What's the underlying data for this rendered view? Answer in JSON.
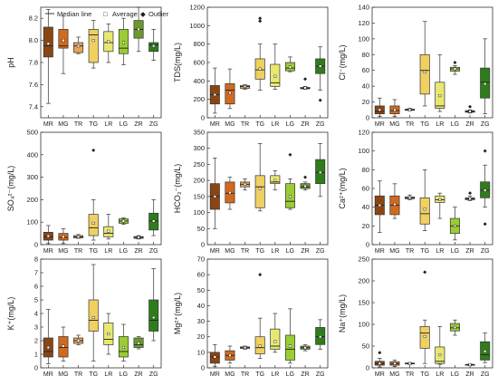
{
  "legend": {
    "median_label": "Median line",
    "average_label": "Average",
    "outlier_label": "Outlier",
    "average_marker": "□",
    "outlier_marker": "◆"
  },
  "colors": {
    "MR": "#8b4513",
    "MG": "#d2691e",
    "TR": "#e8a45a",
    "TG": "#f0d060",
    "LR": "#e8e870",
    "LG": "#9acd32",
    "ZR": "#6b9a2b",
    "ZG": "#2e7d1a"
  },
  "chart_data": [
    {
      "type": "box",
      "ylabel": "pH",
      "ylim": [
        7.3,
        8.3
      ],
      "yticks": [
        "7.4",
        "7.6",
        "7.8",
        "8.0",
        "8.2"
      ],
      "categories": [
        "MR",
        "MG",
        "TR",
        "TG",
        "LR",
        "LG",
        "ZR",
        "ZG"
      ],
      "boxes": [
        {
          "min": 7.43,
          "q1": 7.85,
          "median": 7.95,
          "q3": 8.12,
          "max": 8.28,
          "mean": 7.97,
          "outliers": []
        },
        {
          "min": 7.7,
          "q1": 7.93,
          "median": 7.95,
          "q3": 8.1,
          "max": 8.22,
          "mean": 8.0,
          "outliers": []
        },
        {
          "min": 7.88,
          "q1": 7.89,
          "median": 7.95,
          "q3": 7.98,
          "max": 8.03,
          "mean": 7.95,
          "outliers": []
        },
        {
          "min": 7.75,
          "q1": 7.8,
          "median": 8.05,
          "q3": 8.1,
          "max": 8.18,
          "mean": 8.0,
          "outliers": []
        },
        {
          "min": 7.8,
          "q1": 7.9,
          "median": 7.98,
          "q3": 8.08,
          "max": 8.15,
          "mean": 7.99,
          "outliers": []
        },
        {
          "min": 7.78,
          "q1": 7.88,
          "median": 7.93,
          "q3": 8.1,
          "max": 8.2,
          "mean": 7.98,
          "outliers": []
        },
        {
          "min": 7.9,
          "q1": 8.02,
          "median": 8.1,
          "q3": 8.18,
          "max": 8.3,
          "mean": 8.1,
          "outliers": []
        },
        {
          "min": 7.82,
          "q1": 7.9,
          "median": 7.96,
          "q3": 7.98,
          "max": 8.1,
          "mean": 7.95,
          "outliers": []
        }
      ]
    },
    {
      "type": "box",
      "ylabel": "TDS(mg/L)",
      "ylim": [
        0,
        1200
      ],
      "yticks": [
        "0",
        "200",
        "400",
        "600",
        "800",
        "1000",
        "1200"
      ],
      "categories": [
        "MR",
        "MG",
        "TR",
        "TG",
        "LR",
        "LG",
        "ZR",
        "ZG"
      ],
      "boxes": [
        {
          "min": 50,
          "q1": 150,
          "median": 250,
          "q3": 350,
          "max": 540,
          "mean": 250,
          "outliers": []
        },
        {
          "min": 100,
          "q1": 150,
          "median": 300,
          "q3": 370,
          "max": 530,
          "mean": 270,
          "outliers": []
        },
        {
          "min": 310,
          "q1": 320,
          "median": 340,
          "q3": 350,
          "max": 360,
          "mean": 340,
          "outliers": []
        },
        {
          "min": 300,
          "q1": 420,
          "median": 520,
          "q3": 640,
          "max": 800,
          "mean": 530,
          "outliers": [
            1050,
            1080
          ]
        },
        {
          "min": 310,
          "q1": 340,
          "median": 380,
          "q3": 580,
          "max": 800,
          "mean": 450,
          "outliers": []
        },
        {
          "min": 500,
          "q1": 510,
          "median": 540,
          "q3": 600,
          "max": 660,
          "mean": 550,
          "outliers": []
        },
        {
          "min": 310,
          "q1": 315,
          "median": 320,
          "q3": 330,
          "max": 340,
          "mean": 325,
          "outliers": [
            420
          ]
        },
        {
          "min": 300,
          "q1": 480,
          "median": 560,
          "q3": 640,
          "max": 770,
          "mean": 560,
          "outliers": [
            190
          ]
        }
      ]
    },
    {
      "type": "box",
      "ylabel": "Cl⁻(mg/L)",
      "ylim": [
        0,
        140
      ],
      "yticks": [
        "0",
        "20",
        "40",
        "60",
        "80",
        "100",
        "120",
        "140"
      ],
      "categories": [
        "MR",
        "MG",
        "TR",
        "TG",
        "LR",
        "LG",
        "ZR",
        "ZG"
      ],
      "boxes": [
        {
          "min": 2,
          "q1": 5,
          "median": 8,
          "q3": 15,
          "max": 25,
          "mean": 10,
          "outliers": []
        },
        {
          "min": 2,
          "q1": 5,
          "median": 9,
          "q3": 15,
          "max": 23,
          "mean": 10,
          "outliers": []
        },
        {
          "min": 9,
          "q1": 9.5,
          "median": 10,
          "q3": 11,
          "max": 12,
          "mean": 10,
          "outliers": []
        },
        {
          "min": 15,
          "q1": 30,
          "median": 60,
          "q3": 80,
          "max": 122,
          "mean": 58,
          "outliers": []
        },
        {
          "min": 8,
          "q1": 12,
          "median": 15,
          "q3": 45,
          "max": 80,
          "mean": 28,
          "outliers": []
        },
        {
          "min": 55,
          "q1": 59,
          "median": 62,
          "q3": 64,
          "max": 66,
          "mean": 62,
          "outliers": [
            70
          ]
        },
        {
          "min": 6,
          "q1": 7,
          "median": 8,
          "q3": 9,
          "max": 10,
          "mean": 8,
          "outliers": [
            14
          ]
        },
        {
          "min": 5,
          "q1": 25,
          "median": 45,
          "q3": 63,
          "max": 100,
          "mean": 43,
          "outliers": []
        }
      ]
    },
    {
      "type": "box",
      "ylabel": "SO₄²⁻(mg/L)",
      "ylim": [
        0,
        500
      ],
      "yticks": [
        "0",
        "100",
        "200",
        "300",
        "400",
        "500"
      ],
      "categories": [
        "MR",
        "MG",
        "TR",
        "TG",
        "LR",
        "LG",
        "ZR",
        "ZG"
      ],
      "boxes": [
        {
          "min": 5,
          "q1": 20,
          "median": 35,
          "q3": 55,
          "max": 85,
          "mean": 38,
          "outliers": []
        },
        {
          "min": 5,
          "q1": 20,
          "median": 32,
          "q3": 50,
          "max": 70,
          "mean": 35,
          "outliers": []
        },
        {
          "min": 28,
          "q1": 30,
          "median": 35,
          "q3": 40,
          "max": 45,
          "mean": 35,
          "outliers": []
        },
        {
          "min": 20,
          "q1": 40,
          "median": 75,
          "q3": 135,
          "max": 200,
          "mean": 95,
          "outliers": [
            420
          ]
        },
        {
          "min": 25,
          "q1": 35,
          "median": 50,
          "q3": 80,
          "max": 135,
          "mean": 60,
          "outliers": []
        },
        {
          "min": 90,
          "q1": 95,
          "median": 105,
          "q3": 115,
          "max": 120,
          "mean": 105,
          "outliers": []
        },
        {
          "min": 25,
          "q1": 28,
          "median": 32,
          "q3": 36,
          "max": 40,
          "mean": 32,
          "outliers": []
        },
        {
          "min": 40,
          "q1": 65,
          "median": 105,
          "q3": 140,
          "max": 200,
          "mean": 105,
          "outliers": []
        }
      ]
    },
    {
      "type": "box",
      "ylabel": "HCO₃⁻(mg/L)",
      "ylim": [
        0,
        350
      ],
      "yticks": [
        "0",
        "50",
        "100",
        "150",
        "200",
        "250",
        "300",
        "350"
      ],
      "categories": [
        "MR",
        "MG",
        "TR",
        "TG",
        "LR",
        "LG",
        "ZR",
        "ZG"
      ],
      "boxes": [
        {
          "min": 50,
          "q1": 110,
          "median": 150,
          "q3": 190,
          "max": 270,
          "mean": 150,
          "outliers": []
        },
        {
          "min": 110,
          "q1": 130,
          "median": 160,
          "q3": 195,
          "max": 210,
          "mean": 162,
          "outliers": []
        },
        {
          "min": 170,
          "q1": 180,
          "median": 188,
          "q3": 195,
          "max": 205,
          "mean": 188,
          "outliers": []
        },
        {
          "min": 105,
          "q1": 115,
          "median": 180,
          "q3": 215,
          "max": 315,
          "mean": 175,
          "outliers": []
        },
        {
          "min": 170,
          "q1": 190,
          "median": 195,
          "q3": 215,
          "max": 230,
          "mean": 200,
          "outliers": []
        },
        {
          "min": 110,
          "q1": 115,
          "median": 135,
          "q3": 190,
          "max": 205,
          "mean": 150,
          "outliers": [
            280
          ]
        },
        {
          "min": 170,
          "q1": 175,
          "median": 180,
          "q3": 190,
          "max": 195,
          "mean": 182,
          "outliers": [
            210
          ]
        },
        {
          "min": 150,
          "q1": 190,
          "median": 225,
          "q3": 265,
          "max": 315,
          "mean": 225,
          "outliers": []
        }
      ]
    },
    {
      "type": "box",
      "ylabel": "Ca²⁺(mg/L)",
      "ylim": [
        0,
        120
      ],
      "yticks": [
        "0",
        "20",
        "40",
        "60",
        "80",
        "100",
        "120"
      ],
      "categories": [
        "MR",
        "MG",
        "TR",
        "TG",
        "LR",
        "LG",
        "ZR",
        "ZG"
      ],
      "boxes": [
        {
          "min": 13,
          "q1": 32,
          "median": 42,
          "q3": 52,
          "max": 68,
          "mean": 42,
          "outliers": []
        },
        {
          "min": 28,
          "q1": 32,
          "median": 42,
          "q3": 52,
          "max": 65,
          "mean": 43,
          "outliers": []
        },
        {
          "min": 48,
          "q1": 49,
          "median": 50,
          "q3": 51,
          "max": 53,
          "mean": 50,
          "outliers": []
        },
        {
          "min": 15,
          "q1": 22,
          "median": 33,
          "q3": 50,
          "max": 80,
          "mean": 38,
          "outliers": []
        },
        {
          "min": 28,
          "q1": 45,
          "median": 48,
          "q3": 52,
          "max": 55,
          "mean": 48,
          "outliers": []
        },
        {
          "min": 5,
          "q1": 12,
          "median": 20,
          "q3": 28,
          "max": 40,
          "mean": 20,
          "outliers": []
        },
        {
          "min": 47,
          "q1": 48,
          "median": 49,
          "q3": 50,
          "max": 52,
          "mean": 49,
          "outliers": [
            55
          ]
        },
        {
          "min": 40,
          "q1": 50,
          "median": 58,
          "q3": 67,
          "max": 85,
          "mean": 58,
          "outliers": [
            22,
            100
          ]
        }
      ]
    },
    {
      "type": "box",
      "ylabel": "K⁺(mg/L)",
      "ylim": [
        0,
        8
      ],
      "yticks": [
        "0",
        "1",
        "2",
        "3",
        "4",
        "5",
        "6",
        "7",
        "8"
      ],
      "categories": [
        "MR",
        "MG",
        "TR",
        "TG",
        "LR",
        "LG",
        "ZR",
        "ZG"
      ],
      "boxes": [
        {
          "min": 0.3,
          "q1": 0.8,
          "median": 1.2,
          "q3": 2.2,
          "max": 4.3,
          "mean": 1.5,
          "outliers": []
        },
        {
          "min": 0.5,
          "q1": 0.8,
          "median": 1.5,
          "q3": 2.3,
          "max": 3.0,
          "mean": 1.6,
          "outliers": []
        },
        {
          "min": 1.7,
          "q1": 1.8,
          "median": 2.0,
          "q3": 2.2,
          "max": 2.4,
          "mean": 2.0,
          "outliers": []
        },
        {
          "min": 0.5,
          "q1": 2.7,
          "median": 3.5,
          "q3": 5.0,
          "max": 7.6,
          "mean": 3.7,
          "outliers": []
        },
        {
          "min": 1.0,
          "q1": 1.7,
          "median": 2.1,
          "q3": 3.3,
          "max": 4.0,
          "mean": 2.5,
          "outliers": []
        },
        {
          "min": 0.5,
          "q1": 0.8,
          "median": 1.2,
          "q3": 2.3,
          "max": 3.2,
          "mean": 1.5,
          "outliers": []
        },
        {
          "min": 1.4,
          "q1": 1.5,
          "median": 1.7,
          "q3": 2.2,
          "max": 2.3,
          "mean": 1.8,
          "outliers": []
        },
        {
          "min": 2.0,
          "q1": 2.7,
          "median": 3.5,
          "q3": 5.0,
          "max": 7.3,
          "mean": 3.7,
          "outliers": []
        }
      ]
    },
    {
      "type": "box",
      "ylabel": "Mg²⁺(mg/L)",
      "ylim": [
        0,
        70
      ],
      "yticks": [
        "0",
        "10",
        "20",
        "30",
        "40",
        "50",
        "60",
        "70"
      ],
      "categories": [
        "MR",
        "MG",
        "TR",
        "TG",
        "LR",
        "LG",
        "ZR",
        "ZG"
      ],
      "boxes": [
        {
          "min": 1,
          "q1": 3,
          "median": 7,
          "q3": 10,
          "max": 15,
          "mean": 7,
          "outliers": []
        },
        {
          "min": 3,
          "q1": 5,
          "median": 8,
          "q3": 11,
          "max": 14,
          "mean": 8,
          "outliers": []
        },
        {
          "min": 12,
          "q1": 12.5,
          "median": 13,
          "q3": 13.5,
          "max": 14,
          "mean": 13,
          "outliers": []
        },
        {
          "min": 6,
          "q1": 9,
          "median": 13,
          "q3": 20,
          "max": 32,
          "mean": 14,
          "outliers": [
            60
          ]
        },
        {
          "min": 10,
          "q1": 12,
          "median": 14,
          "q3": 25,
          "max": 35,
          "mean": 17,
          "outliers": []
        },
        {
          "min": 3,
          "q1": 5,
          "median": 12,
          "q3": 21,
          "max": 38,
          "mean": 14,
          "outliers": []
        },
        {
          "min": 11,
          "q1": 12,
          "median": 13,
          "q3": 14,
          "max": 15,
          "mean": 13,
          "outliers": []
        },
        {
          "min": 12,
          "q1": 15,
          "median": 20,
          "q3": 26,
          "max": 31,
          "mean": 20,
          "outliers": []
        }
      ]
    },
    {
      "type": "box",
      "ylabel": "Na⁺(mg/L)",
      "ylim": [
        0,
        250
      ],
      "yticks": [
        "0",
        "50",
        "100",
        "150",
        "200",
        "250"
      ],
      "categories": [
        "MR",
        "MG",
        "TR",
        "TG",
        "LR",
        "LG",
        "ZR",
        "ZG"
      ],
      "boxes": [
        {
          "min": 2,
          "q1": 6,
          "median": 10,
          "q3": 15,
          "max": 22,
          "mean": 10,
          "outliers": [
            35
          ]
        },
        {
          "min": 3,
          "q1": 6,
          "median": 9,
          "q3": 14,
          "max": 18,
          "mean": 10,
          "outliers": []
        },
        {
          "min": 8,
          "q1": 9,
          "median": 10,
          "q3": 11,
          "max": 12,
          "mean": 10,
          "outliers": []
        },
        {
          "min": 10,
          "q1": 45,
          "median": 80,
          "q3": 95,
          "max": 110,
          "mean": 72,
          "outliers": [
            220
          ]
        },
        {
          "min": 8,
          "q1": 10,
          "median": 15,
          "q3": 48,
          "max": 95,
          "mean": 30,
          "outliers": []
        },
        {
          "min": 75,
          "q1": 85,
          "median": 92,
          "q3": 102,
          "max": 110,
          "mean": 93,
          "outliers": []
        },
        {
          "min": 5,
          "q1": 6,
          "median": 7,
          "q3": 8,
          "max": 9,
          "mean": 7,
          "outliers": []
        },
        {
          "min": 12,
          "q1": 18,
          "median": 30,
          "q3": 60,
          "max": 80,
          "mean": 38,
          "outliers": []
        }
      ]
    }
  ]
}
